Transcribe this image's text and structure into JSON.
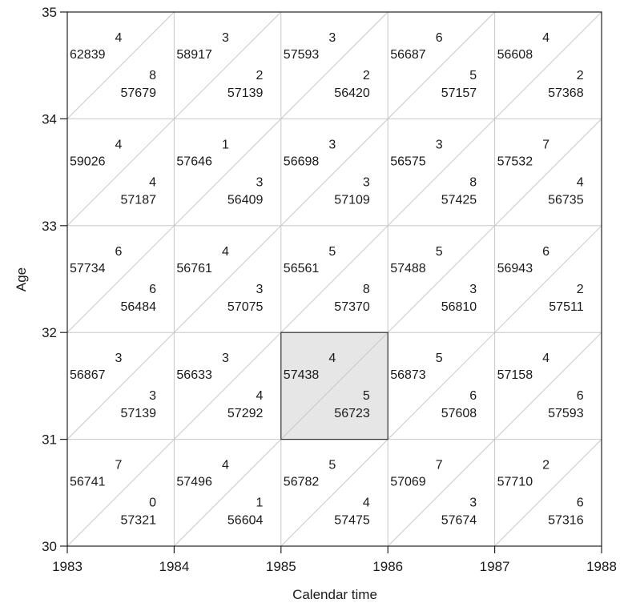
{
  "chart_data": {
    "type": "lexis-diagram",
    "xlabel": "Calendar time",
    "ylabel": "Age",
    "x_ticks": [
      "1983",
      "1984",
      "1985",
      "1986",
      "1987",
      "1988"
    ],
    "y_ticks": [
      "30",
      "31",
      "32",
      "33",
      "34",
      "35"
    ],
    "x_range": [
      1983,
      1988
    ],
    "y_range": [
      30,
      35
    ],
    "highlighted_cell": {
      "year": 1985,
      "age": 31,
      "fill": "#e6e6e6"
    },
    "grid_color": "#c8c8c8",
    "cells": [
      {
        "year": 1983,
        "age": 34,
        "upper": {
          "count": "4",
          "pyears": "62839"
        },
        "lower": {
          "count": "8",
          "pyears": "57679"
        }
      },
      {
        "year": 1984,
        "age": 34,
        "upper": {
          "count": "3",
          "pyears": "58917"
        },
        "lower": {
          "count": "2",
          "pyears": "57139"
        }
      },
      {
        "year": 1985,
        "age": 34,
        "upper": {
          "count": "3",
          "pyears": "57593"
        },
        "lower": {
          "count": "2",
          "pyears": "56420"
        }
      },
      {
        "year": 1986,
        "age": 34,
        "upper": {
          "count": "6",
          "pyears": "56687"
        },
        "lower": {
          "count": "5",
          "pyears": "57157"
        }
      },
      {
        "year": 1987,
        "age": 34,
        "upper": {
          "count": "4",
          "pyears": "56608"
        },
        "lower": {
          "count": "2",
          "pyears": "57368"
        }
      },
      {
        "year": 1983,
        "age": 33,
        "upper": {
          "count": "4",
          "pyears": "59026"
        },
        "lower": {
          "count": "4",
          "pyears": "57187"
        }
      },
      {
        "year": 1984,
        "age": 33,
        "upper": {
          "count": "1",
          "pyears": "57646"
        },
        "lower": {
          "count": "3",
          "pyears": "56409"
        }
      },
      {
        "year": 1985,
        "age": 33,
        "upper": {
          "count": "3",
          "pyears": "56698"
        },
        "lower": {
          "count": "3",
          "pyears": "57109"
        }
      },
      {
        "year": 1986,
        "age": 33,
        "upper": {
          "count": "3",
          "pyears": "56575"
        },
        "lower": {
          "count": "8",
          "pyears": "57425"
        }
      },
      {
        "year": 1987,
        "age": 33,
        "upper": {
          "count": "7",
          "pyears": "57532"
        },
        "lower": {
          "count": "4",
          "pyears": "56735"
        }
      },
      {
        "year": 1983,
        "age": 32,
        "upper": {
          "count": "6",
          "pyears": "57734"
        },
        "lower": {
          "count": "6",
          "pyears": "56484"
        }
      },
      {
        "year": 1984,
        "age": 32,
        "upper": {
          "count": "4",
          "pyears": "56761"
        },
        "lower": {
          "count": "3",
          "pyears": "57075"
        }
      },
      {
        "year": 1985,
        "age": 32,
        "upper": {
          "count": "5",
          "pyears": "56561"
        },
        "lower": {
          "count": "8",
          "pyears": "57370"
        }
      },
      {
        "year": 1986,
        "age": 32,
        "upper": {
          "count": "5",
          "pyears": "57488"
        },
        "lower": {
          "count": "3",
          "pyears": "56810"
        }
      },
      {
        "year": 1987,
        "age": 32,
        "upper": {
          "count": "6",
          "pyears": "56943"
        },
        "lower": {
          "count": "2",
          "pyears": "57511"
        }
      },
      {
        "year": 1983,
        "age": 31,
        "upper": {
          "count": "3",
          "pyears": "56867"
        },
        "lower": {
          "count": "3",
          "pyears": "57139"
        }
      },
      {
        "year": 1984,
        "age": 31,
        "upper": {
          "count": "3",
          "pyears": "56633"
        },
        "lower": {
          "count": "4",
          "pyears": "57292"
        }
      },
      {
        "year": 1985,
        "age": 31,
        "upper": {
          "count": "4",
          "pyears": "57438"
        },
        "lower": {
          "count": "5",
          "pyears": "56723"
        }
      },
      {
        "year": 1986,
        "age": 31,
        "upper": {
          "count": "5",
          "pyears": "56873"
        },
        "lower": {
          "count": "6",
          "pyears": "57608"
        }
      },
      {
        "year": 1987,
        "age": 31,
        "upper": {
          "count": "4",
          "pyears": "57158"
        },
        "lower": {
          "count": "6",
          "pyears": "57593"
        }
      },
      {
        "year": 1983,
        "age": 30,
        "upper": {
          "count": "7",
          "pyears": "56741"
        },
        "lower": {
          "count": "0",
          "pyears": "57321"
        }
      },
      {
        "year": 1984,
        "age": 30,
        "upper": {
          "count": "4",
          "pyears": "57496"
        },
        "lower": {
          "count": "1",
          "pyears": "56604"
        }
      },
      {
        "year": 1985,
        "age": 30,
        "upper": {
          "count": "5",
          "pyears": "56782"
        },
        "lower": {
          "count": "4",
          "pyears": "57475"
        }
      },
      {
        "year": 1986,
        "age": 30,
        "upper": {
          "count": "7",
          "pyears": "57069"
        },
        "lower": {
          "count": "3",
          "pyears": "57674"
        }
      },
      {
        "year": 1987,
        "age": 30,
        "upper": {
          "count": "2",
          "pyears": "57710"
        },
        "lower": {
          "count": "6",
          "pyears": "57316"
        }
      }
    ]
  }
}
